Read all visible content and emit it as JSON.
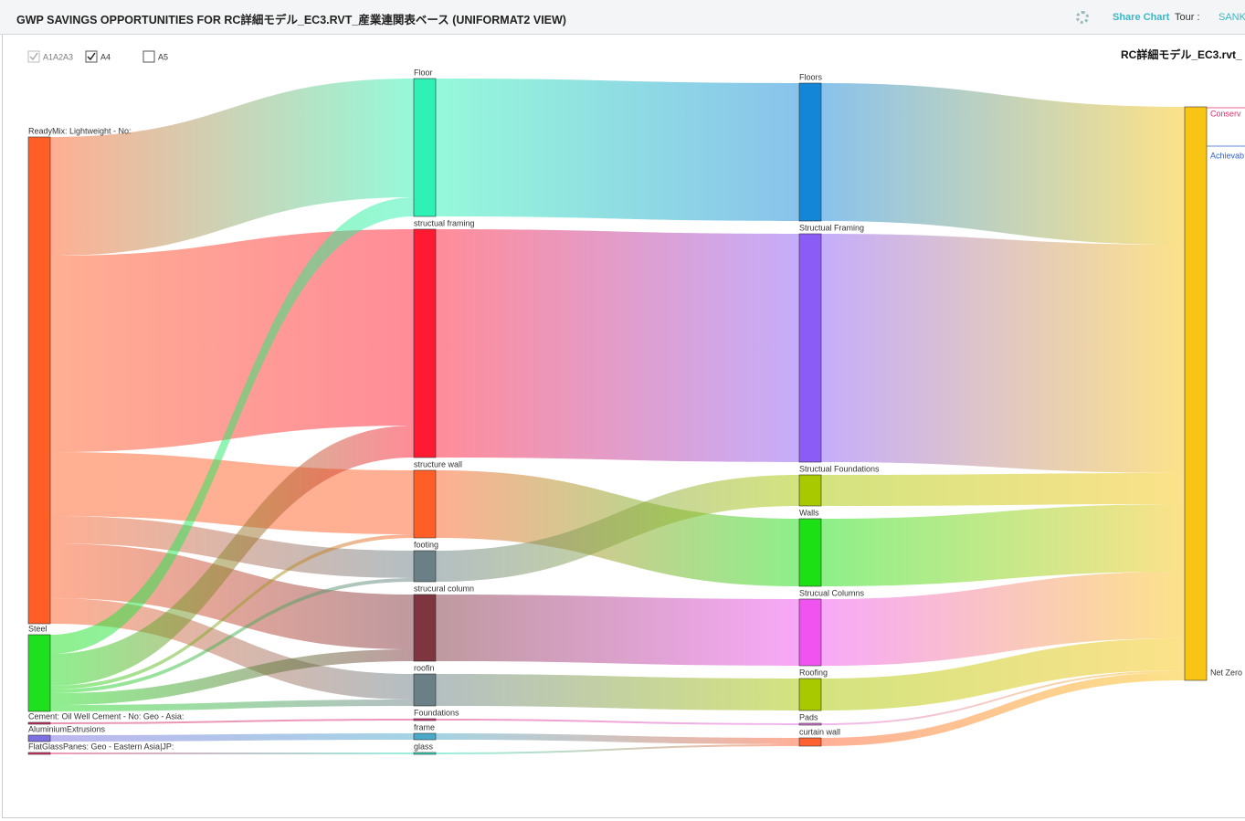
{
  "header": {
    "title": "GWP SAVINGS OPPORTUNITIES FOR RC詳細モデル_EC3.RVT_産業連関表ベース (UNIFORMAT2 VIEW)",
    "share": "Share Chart",
    "tour": "Tour :",
    "tour_value": "SANK"
  },
  "filters": [
    {
      "label": "A1A2A3",
      "checked": true,
      "disabled": true
    },
    {
      "label": "A4",
      "checked": true,
      "disabled": false
    },
    {
      "label": "A5",
      "checked": false,
      "disabled": false
    }
  ],
  "chart_data": {
    "type": "sankey",
    "title": "RC詳細モデル_EC3.rvt_",
    "nodes": [
      {
        "name": "ReadyMix: Lightweight - No:",
        "column": 0,
        "color": "#ff5f27"
      },
      {
        "name": "Steel",
        "column": 0,
        "color": "#1fe01f"
      },
      {
        "name": "Cement: Oil Well Cement - No: Geo - Asia:",
        "column": 0,
        "color": "#d03060"
      },
      {
        "name": "AluminiumExtrusions",
        "column": 0,
        "color": "#7d6fdf"
      },
      {
        "name": "FlatGlassPanes: Geo - Eastern Asia|JP:",
        "column": 0,
        "color": "#e0316a"
      },
      {
        "name": "Floor",
        "column": 1,
        "color": "#2ef2b5"
      },
      {
        "name": "structual framing",
        "column": 1,
        "color": "#ff1a33"
      },
      {
        "name": "structure wall",
        "column": 1,
        "color": "#ff5f27"
      },
      {
        "name": "footing",
        "column": 1,
        "color": "#6a7f86"
      },
      {
        "name": "strucural column",
        "column": 1,
        "color": "#7f3540"
      },
      {
        "name": "roofin",
        "column": 1,
        "color": "#6a7f86"
      },
      {
        "name": "Foundations",
        "column": 1,
        "color": "#e03080"
      },
      {
        "name": "frame",
        "column": 1,
        "color": "#4aa8c8"
      },
      {
        "name": "glass",
        "column": 1,
        "color": "#33e0c0"
      },
      {
        "name": "Floors",
        "column": 2,
        "color": "#1486d8"
      },
      {
        "name": "Structual Framing",
        "column": 2,
        "color": "#8c5cf7"
      },
      {
        "name": "Structual Foundations",
        "column": 2,
        "color": "#a8c800"
      },
      {
        "name": "Walls",
        "column": 2,
        "color": "#1ce014"
      },
      {
        "name": "Strucual Columns",
        "column": 2,
        "color": "#f053f0"
      },
      {
        "name": "Roofing",
        "column": 2,
        "color": "#a8c800"
      },
      {
        "name": "Pads",
        "column": 2,
        "color": "#e070e0"
      },
      {
        "name": "curtain wall",
        "column": 2,
        "color": "#ff6030"
      },
      {
        "name": "Net Zero",
        "column": 3,
        "color": "#f9c515"
      }
    ],
    "links": [
      {
        "source": 0,
        "target": 5,
        "value": 130
      },
      {
        "source": 0,
        "target": 6,
        "value": 215
      },
      {
        "source": 0,
        "target": 7,
        "value": 70
      },
      {
        "source": 0,
        "target": 8,
        "value": 30
      },
      {
        "source": 0,
        "target": 9,
        "value": 60
      },
      {
        "source": 0,
        "target": 10,
        "value": 28
      },
      {
        "source": 1,
        "target": 5,
        "value": 21
      },
      {
        "source": 1,
        "target": 6,
        "value": 35
      },
      {
        "source": 1,
        "target": 7,
        "value": 4
      },
      {
        "source": 1,
        "target": 8,
        "value": 4
      },
      {
        "source": 1,
        "target": 9,
        "value": 13
      },
      {
        "source": 1,
        "target": 10,
        "value": 7
      },
      {
        "source": 2,
        "target": 11,
        "value": 2
      },
      {
        "source": 3,
        "target": 12,
        "value": 7
      },
      {
        "source": 4,
        "target": 13,
        "value": 2
      },
      {
        "source": 5,
        "target": 14,
        "value": 151
      },
      {
        "source": 6,
        "target": 15,
        "value": 250
      },
      {
        "source": 7,
        "target": 17,
        "value": 74
      },
      {
        "source": 8,
        "target": 16,
        "value": 34
      },
      {
        "source": 9,
        "target": 18,
        "value": 73
      },
      {
        "source": 10,
        "target": 19,
        "value": 35
      },
      {
        "source": 11,
        "target": 20,
        "value": 2
      },
      {
        "source": 12,
        "target": 21,
        "value": 7
      },
      {
        "source": 13,
        "target": 21,
        "value": 2
      },
      {
        "source": 14,
        "target": 22,
        "value": 151
      },
      {
        "source": 15,
        "target": 22,
        "value": 250
      },
      {
        "source": 16,
        "target": 22,
        "value": 34
      },
      {
        "source": 17,
        "target": 22,
        "value": 74
      },
      {
        "source": 18,
        "target": 22,
        "value": 73
      },
      {
        "source": 19,
        "target": 22,
        "value": 35
      },
      {
        "source": 20,
        "target": 22,
        "value": 2
      },
      {
        "source": 21,
        "target": 22,
        "value": 9
      }
    ],
    "annotations": [
      {
        "text": "Conserv",
        "color": "#e0316a"
      },
      {
        "text": "Achievab",
        "color": "#3060d0"
      }
    ]
  }
}
